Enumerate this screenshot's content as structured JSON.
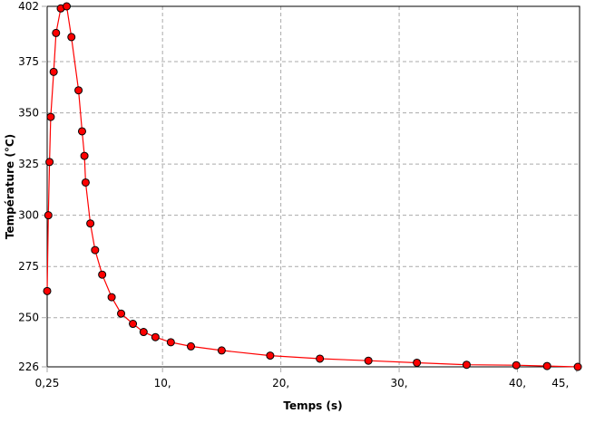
{
  "chart_data": {
    "type": "line",
    "title": "",
    "xlabel": "Temps (s)",
    "ylabel": "Température (°C)",
    "xlim": [
      0.25,
      45.25
    ],
    "ylim": [
      226,
      402
    ],
    "x_ticks": [
      0.25,
      10,
      20,
      30,
      40,
      45
    ],
    "x_tick_labels": [
      "0,25",
      "10,",
      "20,",
      "30,",
      "40,",
      "45,"
    ],
    "y_ticks": [
      226,
      250,
      275,
      300,
      325,
      350,
      375,
      402
    ],
    "y_tick_labels": [
      "226",
      "250",
      "275",
      "300",
      "325",
      "350",
      "375",
      "402"
    ],
    "x_grid": [
      10,
      20,
      30,
      40
    ],
    "y_grid": [
      250,
      275,
      300,
      325,
      350,
      375
    ],
    "grid": true,
    "series": [
      {
        "name": "Température",
        "color": "#ff0000",
        "marker_color": "#ff0000",
        "x": [
          0.25,
          0.35,
          0.45,
          0.55,
          0.8,
          1.0,
          1.4,
          1.9,
          2.3,
          2.9,
          3.2,
          3.4,
          3.5,
          3.9,
          4.3,
          4.9,
          5.7,
          6.5,
          7.5,
          8.4,
          9.4,
          10.7,
          12.4,
          15.0,
          19.1,
          23.3,
          27.4,
          31.5,
          35.7,
          39.9,
          42.5,
          45.1
        ],
        "y": [
          263,
          300,
          326,
          348,
          370,
          389,
          401,
          402,
          387,
          361,
          341,
          329,
          316,
          296,
          283,
          271,
          260,
          252,
          247,
          243,
          240.5,
          238,
          236,
          234,
          231.5,
          230,
          229,
          228,
          227,
          226.8,
          226.4,
          226
        ]
      }
    ]
  }
}
